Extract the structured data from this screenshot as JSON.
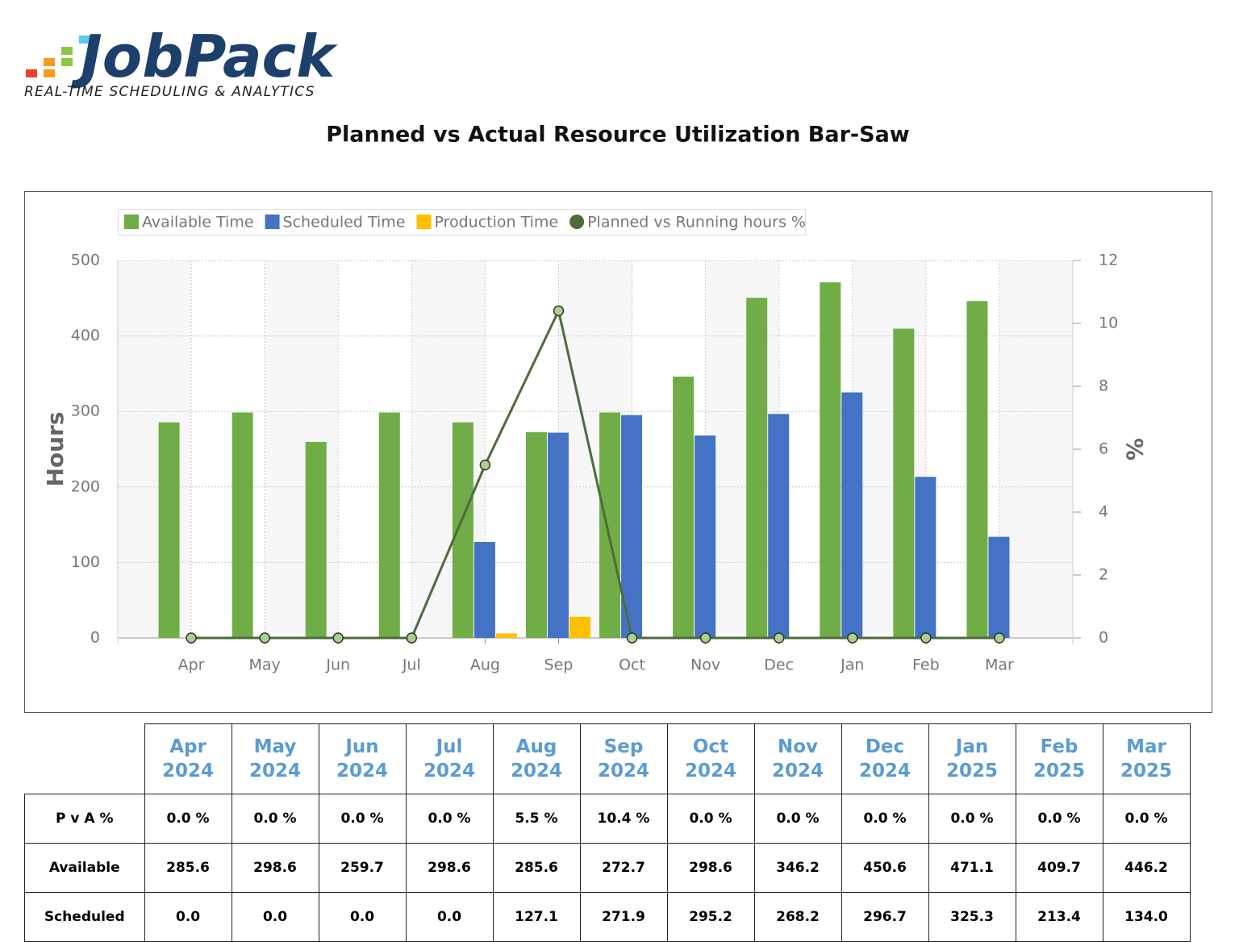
{
  "logo": {
    "name": "JobPack",
    "tagline": "REAL-TIME SCHEDULING & ANALYTICS"
  },
  "chart_data": {
    "type": "bar",
    "title": "Planned vs Actual Resource Utilization Bar-Saw",
    "categories": [
      "Apr",
      "May",
      "Jun",
      "Jul",
      "Aug",
      "Sep",
      "Oct",
      "Nov",
      "Dec",
      "Jan",
      "Feb",
      "Mar"
    ],
    "ylabel": "Hours",
    "y2label": "%",
    "ylim": [
      0,
      500
    ],
    "yticks": [
      0,
      100,
      200,
      300,
      400,
      500
    ],
    "y2lim": [
      0,
      12
    ],
    "y2ticks": [
      0,
      2,
      4,
      6,
      8,
      10,
      12
    ],
    "grid": true,
    "legend": "top-left",
    "series": [
      {
        "name": "Available Time",
        "type": "bar",
        "color": "#70ad47",
        "values": [
          285.6,
          298.6,
          259.7,
          298.6,
          285.6,
          272.7,
          298.6,
          346.2,
          450.6,
          471.1,
          409.7,
          446.2
        ]
      },
      {
        "name": "Scheduled Time",
        "type": "bar",
        "color": "#4472c4",
        "values": [
          0.0,
          0.0,
          0.0,
          0.0,
          127.1,
          271.9,
          295.2,
          268.2,
          296.7,
          325.3,
          213.4,
          134.0
        ]
      },
      {
        "name": "Production Time",
        "type": "bar",
        "color": "#ffc000",
        "values": [
          0,
          0,
          0,
          0,
          6,
          28,
          0,
          0,
          0,
          0,
          0,
          0
        ]
      },
      {
        "name": "Planned vs Running hours %",
        "type": "line",
        "axis": "y2",
        "color": "#4f6b3c",
        "values": [
          0.0,
          0.0,
          0.0,
          0.0,
          5.5,
          10.4,
          0.0,
          0.0,
          0.0,
          0.0,
          0.0,
          0.0
        ]
      }
    ]
  },
  "table": {
    "header": [
      "Apr 2024",
      "May 2024",
      "Jun 2024",
      "Jul 2024",
      "Aug 2024",
      "Sep 2024",
      "Oct 2024",
      "Nov 2024",
      "Dec 2024",
      "Jan 2025",
      "Feb 2025",
      "Mar 2025"
    ],
    "rows": [
      [
        "P v A %",
        "0.0 %",
        "0.0 %",
        "0.0 %",
        "0.0 %",
        "5.5 %",
        "10.4 %",
        "0.0 %",
        "0.0 %",
        "0.0 %",
        "0.0 %",
        "0.0 %",
        "0.0 %"
      ],
      [
        "Available",
        "285.6",
        "298.6",
        "259.7",
        "298.6",
        "285.6",
        "272.7",
        "298.6",
        "346.2",
        "450.6",
        "471.1",
        "409.7",
        "446.2"
      ],
      [
        "Scheduled",
        "0.0",
        "0.0",
        "0.0",
        "0.0",
        "127.1",
        "271.9",
        "295.2",
        "268.2",
        "296.7",
        "325.3",
        "213.4",
        "134.0"
      ]
    ]
  }
}
